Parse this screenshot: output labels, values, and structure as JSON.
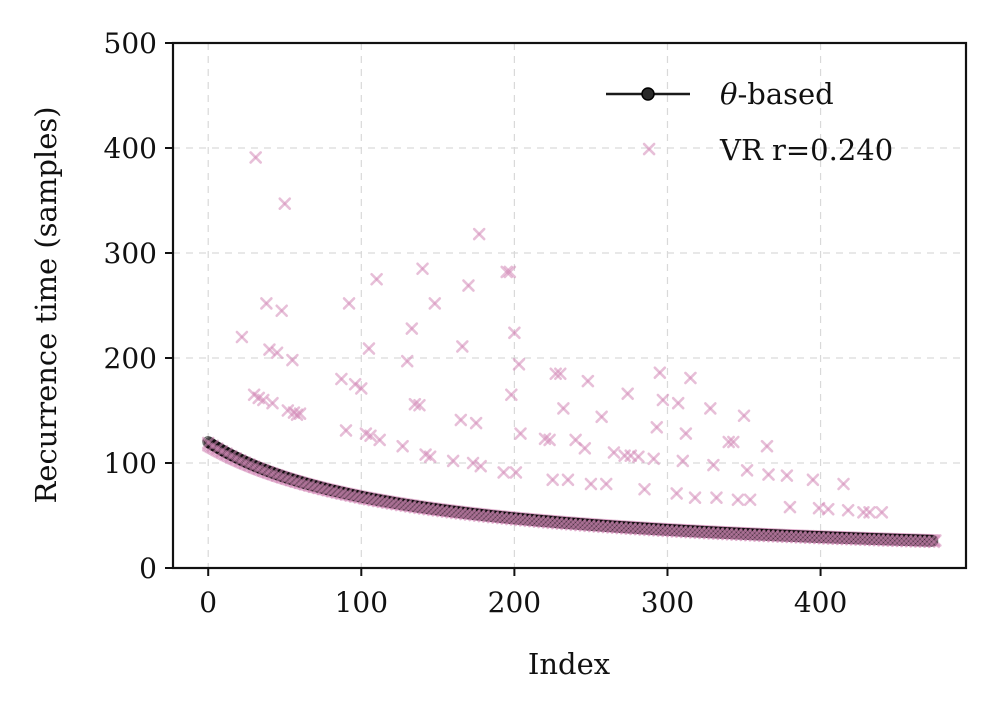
{
  "chart_data": {
    "type": "scatter",
    "title": "",
    "xlabel": "Index",
    "ylabel": "Recurrence time (samples)",
    "xlim": [
      -23,
      495
    ],
    "ylim": [
      0,
      500
    ],
    "xticks": [
      0,
      100,
      200,
      300,
      400
    ],
    "yticks": [
      0,
      100,
      200,
      300,
      400,
      500
    ],
    "grid": true,
    "legend_position": "top-right",
    "colors": {
      "theta_line": "#1a1a1a",
      "theta_marker": "#0d0d0d",
      "vr_marker": "#d38ab8"
    },
    "series": [
      {
        "name": "θ-based",
        "legend_label": "θ-based",
        "legend_label_italic_part": "θ",
        "legend_label_rest": "-based",
        "marker": "circle-line",
        "model": {
          "form": "a/(1+b*x)",
          "a": 120,
          "b": 0.00768
        },
        "x_range": [
          0,
          473
        ]
      },
      {
        "name": "VR r=0.240",
        "legend_label": "VR r=0.240",
        "marker": "x",
        "base_model": {
          "form": "a/(1+b*x)",
          "a": 117,
          "b": 0.0073
        },
        "x_range": [
          0,
          475
        ],
        "scatter_points": [
          [
            22,
            220
          ],
          [
            30,
            165
          ],
          [
            31,
            391
          ],
          [
            33,
            162
          ],
          [
            36,
            160
          ],
          [
            38,
            252
          ],
          [
            40,
            208
          ],
          [
            42,
            157
          ],
          [
            45,
            205
          ],
          [
            48,
            245
          ],
          [
            50,
            347
          ],
          [
            52,
            150
          ],
          [
            55,
            198
          ],
          [
            56,
            148
          ],
          [
            58,
            146
          ],
          [
            60,
            147
          ],
          [
            87,
            180
          ],
          [
            90,
            131
          ],
          [
            92,
            252
          ],
          [
            96,
            175
          ],
          [
            100,
            171
          ],
          [
            103,
            128
          ],
          [
            105,
            209
          ],
          [
            106,
            126
          ],
          [
            110,
            275
          ],
          [
            112,
            122
          ],
          [
            127,
            116
          ],
          [
            130,
            197
          ],
          [
            133,
            228
          ],
          [
            135,
            156
          ],
          [
            138,
            155
          ],
          [
            140,
            285
          ],
          [
            142,
            108
          ],
          [
            145,
            106
          ],
          [
            148,
            252
          ],
          [
            160,
            102
          ],
          [
            165,
            141
          ],
          [
            166,
            211
          ],
          [
            170,
            269
          ],
          [
            173,
            100
          ],
          [
            175,
            138
          ],
          [
            177,
            318
          ],
          [
            178,
            97
          ],
          [
            193,
            91
          ],
          [
            195,
            282
          ],
          [
            197,
            282
          ],
          [
            198,
            165
          ],
          [
            200,
            224
          ],
          [
            201,
            91
          ],
          [
            203,
            194
          ],
          [
            204,
            128
          ],
          [
            220,
            123
          ],
          [
            223,
            122
          ],
          [
            225,
            84
          ],
          [
            227,
            185
          ],
          [
            230,
            185
          ],
          [
            232,
            152
          ],
          [
            235,
            84
          ],
          [
            240,
            122
          ],
          [
            246,
            114
          ],
          [
            248,
            178
          ],
          [
            250,
            80
          ],
          [
            257,
            144
          ],
          [
            260,
            80
          ],
          [
            265,
            110
          ],
          [
            272,
            107
          ],
          [
            274,
            166
          ],
          [
            276,
            107
          ],
          [
            281,
            106
          ],
          [
            285,
            75
          ],
          [
            288,
            399
          ],
          [
            291,
            104
          ],
          [
            293,
            134
          ],
          [
            295,
            186
          ],
          [
            297,
            160
          ],
          [
            306,
            71
          ],
          [
            307,
            157
          ],
          [
            310,
            102
          ],
          [
            312,
            128
          ],
          [
            315,
            181
          ],
          [
            318,
            67
          ],
          [
            328,
            152
          ],
          [
            330,
            98
          ],
          [
            332,
            67
          ],
          [
            340,
            120
          ],
          [
            343,
            120
          ],
          [
            346,
            65
          ],
          [
            350,
            145
          ],
          [
            352,
            93
          ],
          [
            354,
            65
          ],
          [
            365,
            116
          ],
          [
            366,
            89
          ],
          [
            378,
            88
          ],
          [
            380,
            58
          ],
          [
            395,
            84
          ],
          [
            399,
            57
          ],
          [
            405,
            56
          ],
          [
            415,
            80
          ],
          [
            418,
            55
          ],
          [
            428,
            53
          ],
          [
            432,
            53
          ],
          [
            440,
            53
          ]
        ]
      }
    ]
  }
}
